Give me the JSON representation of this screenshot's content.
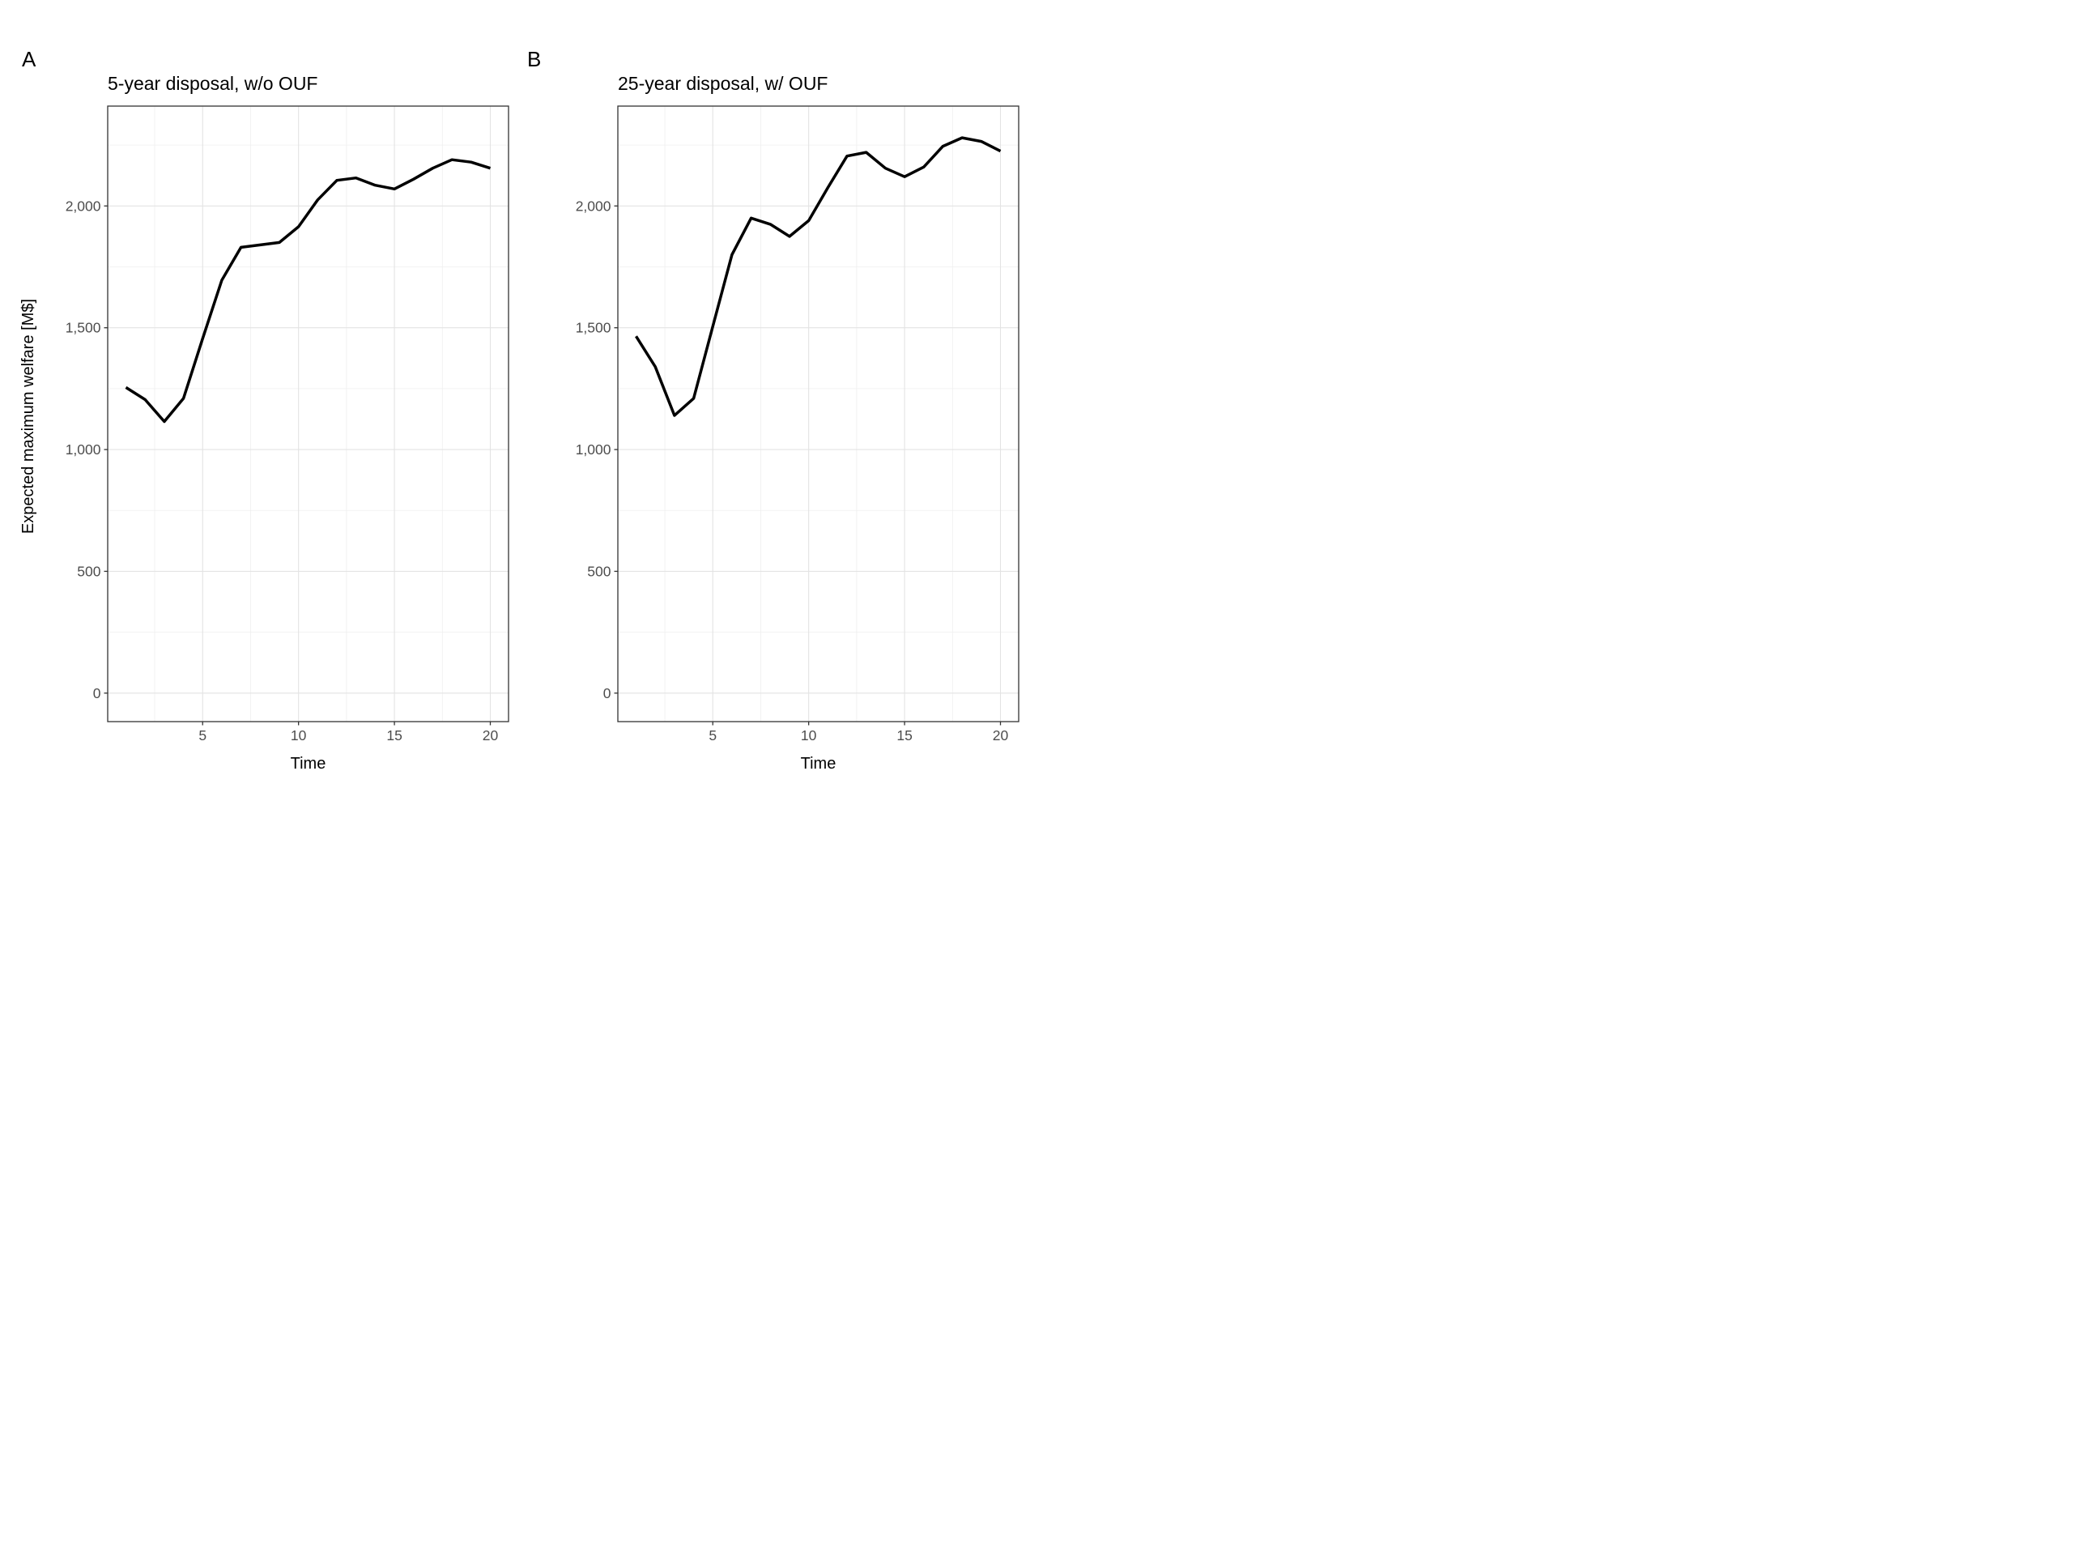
{
  "figure": {
    "y_axis_title": "Expected maximum welfare [M$]",
    "background_color": "#ffffff",
    "line_color": "#000000",
    "panel_border_color": "#333333",
    "tick_color": "#333333",
    "tick_label_color": "#4d4d4d",
    "major_grid_color": "#e3e3e3",
    "minor_grid_color": "#efefef"
  },
  "panels": [
    {
      "label": "A",
      "title": "5-year disposal, w/o OUF",
      "x_axis_title": "Time"
    },
    {
      "label": "B",
      "title": "25-year disposal, w/ OUF",
      "x_axis_title": "Time"
    }
  ],
  "chart_data": [
    {
      "type": "line",
      "title": "5-year disposal, w/o OUF",
      "xlabel": "Time",
      "ylabel": "Expected maximum welfare [M$]",
      "x": [
        1,
        2,
        3,
        4,
        5,
        6,
        7,
        8,
        9,
        10,
        11,
        12,
        13,
        14,
        15,
        16,
        17,
        18,
        19,
        20
      ],
      "values": [
        1255,
        1205,
        1115,
        1210,
        1455,
        1695,
        1830,
        1840,
        1850,
        1915,
        2025,
        2105,
        2115,
        2085,
        2070,
        2110,
        2155,
        2190,
        2180,
        2155
      ],
      "x_ticks": {
        "values": [
          5,
          10,
          15,
          20
        ],
        "labels": [
          "5",
          "10",
          "15",
          "20"
        ]
      },
      "y_ticks": {
        "values": [
          0,
          500,
          1000,
          1500,
          2000
        ],
        "labels": [
          "0",
          "500",
          "1,000",
          "1,500",
          "2,000"
        ]
      },
      "x_minor": [
        2.5,
        7.5,
        12.5,
        17.5
      ],
      "y_minor": [
        250,
        750,
        1250,
        1750,
        2250
      ],
      "xlim": [
        0.05,
        20.95
      ],
      "ylim": [
        -117,
        2410
      ],
      "grid": true,
      "legend": "none"
    },
    {
      "type": "line",
      "title": "25-year disposal, w/ OUF",
      "xlabel": "Time",
      "ylabel": "Expected maximum welfare [M$]",
      "x": [
        1,
        2,
        3,
        4,
        5,
        6,
        7,
        8,
        9,
        10,
        11,
        12,
        13,
        14,
        15,
        16,
        17,
        18,
        19,
        20
      ],
      "values": [
        1465,
        1340,
        1140,
        1210,
        1505,
        1800,
        1950,
        1925,
        1875,
        1940,
        2075,
        2205,
        2220,
        2155,
        2120,
        2160,
        2245,
        2280,
        2265,
        2225
      ],
      "x_ticks": {
        "values": [
          5,
          10,
          15,
          20
        ],
        "labels": [
          "5",
          "10",
          "15",
          "20"
        ]
      },
      "y_ticks": {
        "values": [
          0,
          500,
          1000,
          1500,
          2000
        ],
        "labels": [
          "0",
          "500",
          "1,000",
          "1,500",
          "2,000"
        ]
      },
      "x_minor": [
        2.5,
        7.5,
        12.5,
        17.5
      ],
      "y_minor": [
        250,
        750,
        1250,
        1750,
        2250
      ],
      "xlim": [
        0.05,
        20.95
      ],
      "ylim": [
        -117,
        2410
      ],
      "grid": true,
      "legend": "none"
    }
  ]
}
